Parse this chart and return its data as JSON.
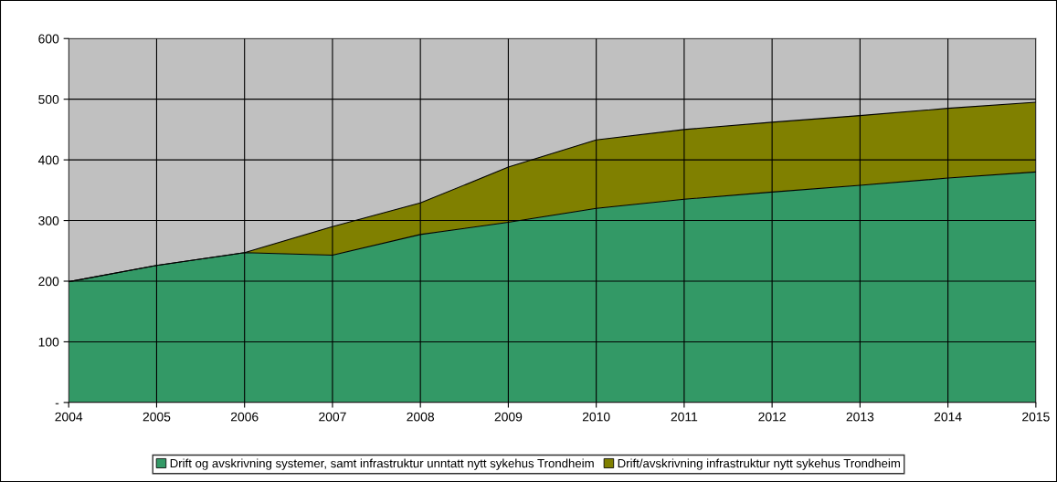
{
  "chart_data": {
    "type": "area",
    "stacked": true,
    "categories": [
      "2004",
      "2005",
      "2006",
      "2007",
      "2008",
      "2009",
      "2010",
      "2011",
      "2012",
      "2013",
      "2014",
      "2015"
    ],
    "series": [
      {
        "name": "Drift og avskrivning systemer, samt infrastruktur unntatt nytt sykehus Trondheim",
        "color": "#339966",
        "values": [
          199,
          226,
          247,
          243,
          277,
          297,
          320,
          335,
          347,
          358,
          370,
          380
        ]
      },
      {
        "name": "Drift/avskrivning infrastruktur nytt sykehus Trondheim",
        "color": "#808000",
        "values": [
          0,
          0,
          0,
          47,
          52,
          91,
          113,
          115,
          115,
          115,
          115,
          115
        ]
      }
    ],
    "ylim": [
      0,
      600
    ],
    "yticks": [
      {
        "value": 0,
        "label": "-"
      },
      100,
      200,
      300,
      400,
      500,
      600
    ],
    "grid": true,
    "legend": "bottom"
  }
}
